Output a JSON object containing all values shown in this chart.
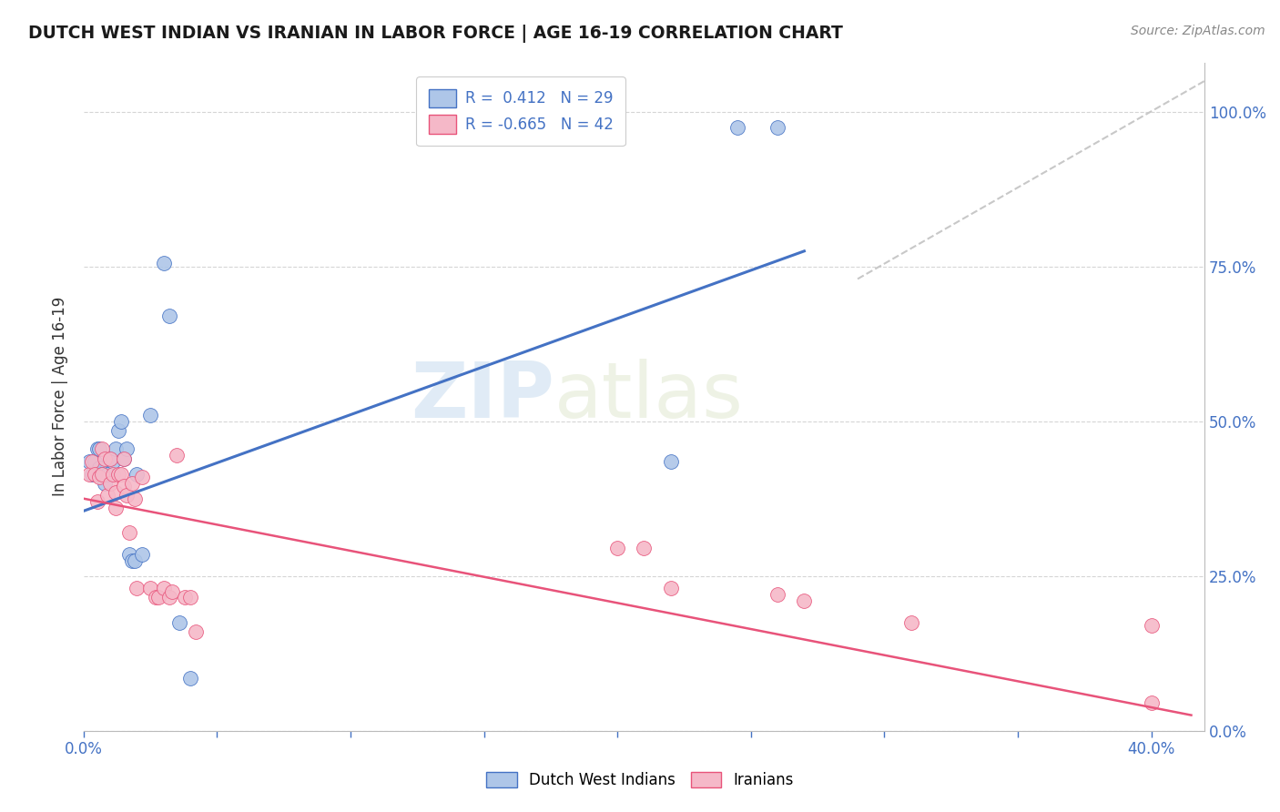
{
  "title": "DUTCH WEST INDIAN VS IRANIAN IN LABOR FORCE | AGE 16-19 CORRELATION CHART",
  "source": "Source: ZipAtlas.com",
  "ylabel": "In Labor Force | Age 16-19",
  "xlim": [
    0.0,
    0.42
  ],
  "ylim": [
    0.0,
    1.08
  ],
  "xticks": [
    0.0,
    0.05,
    0.1,
    0.15,
    0.2,
    0.25,
    0.3,
    0.35,
    0.4
  ],
  "xtick_labels": [
    "0.0%",
    "",
    "",
    "",
    "",
    "",
    "",
    "",
    "40.0%"
  ],
  "ytick_labels": [
    "0.0%",
    "25.0%",
    "50.0%",
    "75.0%",
    "100.0%"
  ],
  "yticks": [
    0.0,
    0.25,
    0.5,
    0.75,
    1.0
  ],
  "blue_color": "#aec6e8",
  "blue_line_color": "#4472c4",
  "pink_color": "#f5b8c8",
  "pink_line_color": "#e8537a",
  "diagonal_color": "#c8c8c8",
  "watermark_zip": "ZIP",
  "watermark_atlas": "atlas",
  "legend_blue_R": "0.412",
  "legend_blue_N": "29",
  "legend_pink_R": "-0.665",
  "legend_pink_N": "42",
  "blue_scatter_x": [
    0.002,
    0.003,
    0.004,
    0.005,
    0.006,
    0.006,
    0.007,
    0.008,
    0.009,
    0.01,
    0.011,
    0.012,
    0.013,
    0.014,
    0.015,
    0.016,
    0.017,
    0.018,
    0.019,
    0.02,
    0.022,
    0.025,
    0.03,
    0.032,
    0.036,
    0.04,
    0.22,
    0.245,
    0.26
  ],
  "blue_scatter_y": [
    0.435,
    0.415,
    0.435,
    0.455,
    0.425,
    0.455,
    0.415,
    0.4,
    0.415,
    0.44,
    0.435,
    0.455,
    0.485,
    0.5,
    0.44,
    0.455,
    0.285,
    0.275,
    0.275,
    0.415,
    0.285,
    0.51,
    0.755,
    0.67,
    0.175,
    0.085,
    0.435,
    0.975,
    0.975
  ],
  "pink_scatter_x": [
    0.002,
    0.003,
    0.004,
    0.005,
    0.006,
    0.007,
    0.007,
    0.008,
    0.009,
    0.01,
    0.01,
    0.011,
    0.012,
    0.012,
    0.013,
    0.014,
    0.015,
    0.015,
    0.016,
    0.017,
    0.018,
    0.019,
    0.02,
    0.022,
    0.025,
    0.027,
    0.028,
    0.03,
    0.032,
    0.033,
    0.035,
    0.038,
    0.04,
    0.042,
    0.2,
    0.21,
    0.22,
    0.26,
    0.27,
    0.31,
    0.4,
    0.4
  ],
  "pink_scatter_y": [
    0.415,
    0.435,
    0.415,
    0.37,
    0.41,
    0.415,
    0.455,
    0.44,
    0.38,
    0.4,
    0.44,
    0.415,
    0.385,
    0.36,
    0.415,
    0.415,
    0.44,
    0.395,
    0.38,
    0.32,
    0.4,
    0.375,
    0.23,
    0.41,
    0.23,
    0.215,
    0.215,
    0.23,
    0.215,
    0.225,
    0.445,
    0.215,
    0.215,
    0.16,
    0.295,
    0.295,
    0.23,
    0.22,
    0.21,
    0.175,
    0.17,
    0.045
  ],
  "blue_line_x": [
    0.0,
    0.27
  ],
  "blue_line_y": [
    0.355,
    0.775
  ],
  "pink_line_x": [
    0.0,
    0.415
  ],
  "pink_line_y": [
    0.375,
    0.025
  ],
  "diag_line_x": [
    0.29,
    0.42
  ],
  "diag_line_y": [
    0.73,
    1.05
  ]
}
